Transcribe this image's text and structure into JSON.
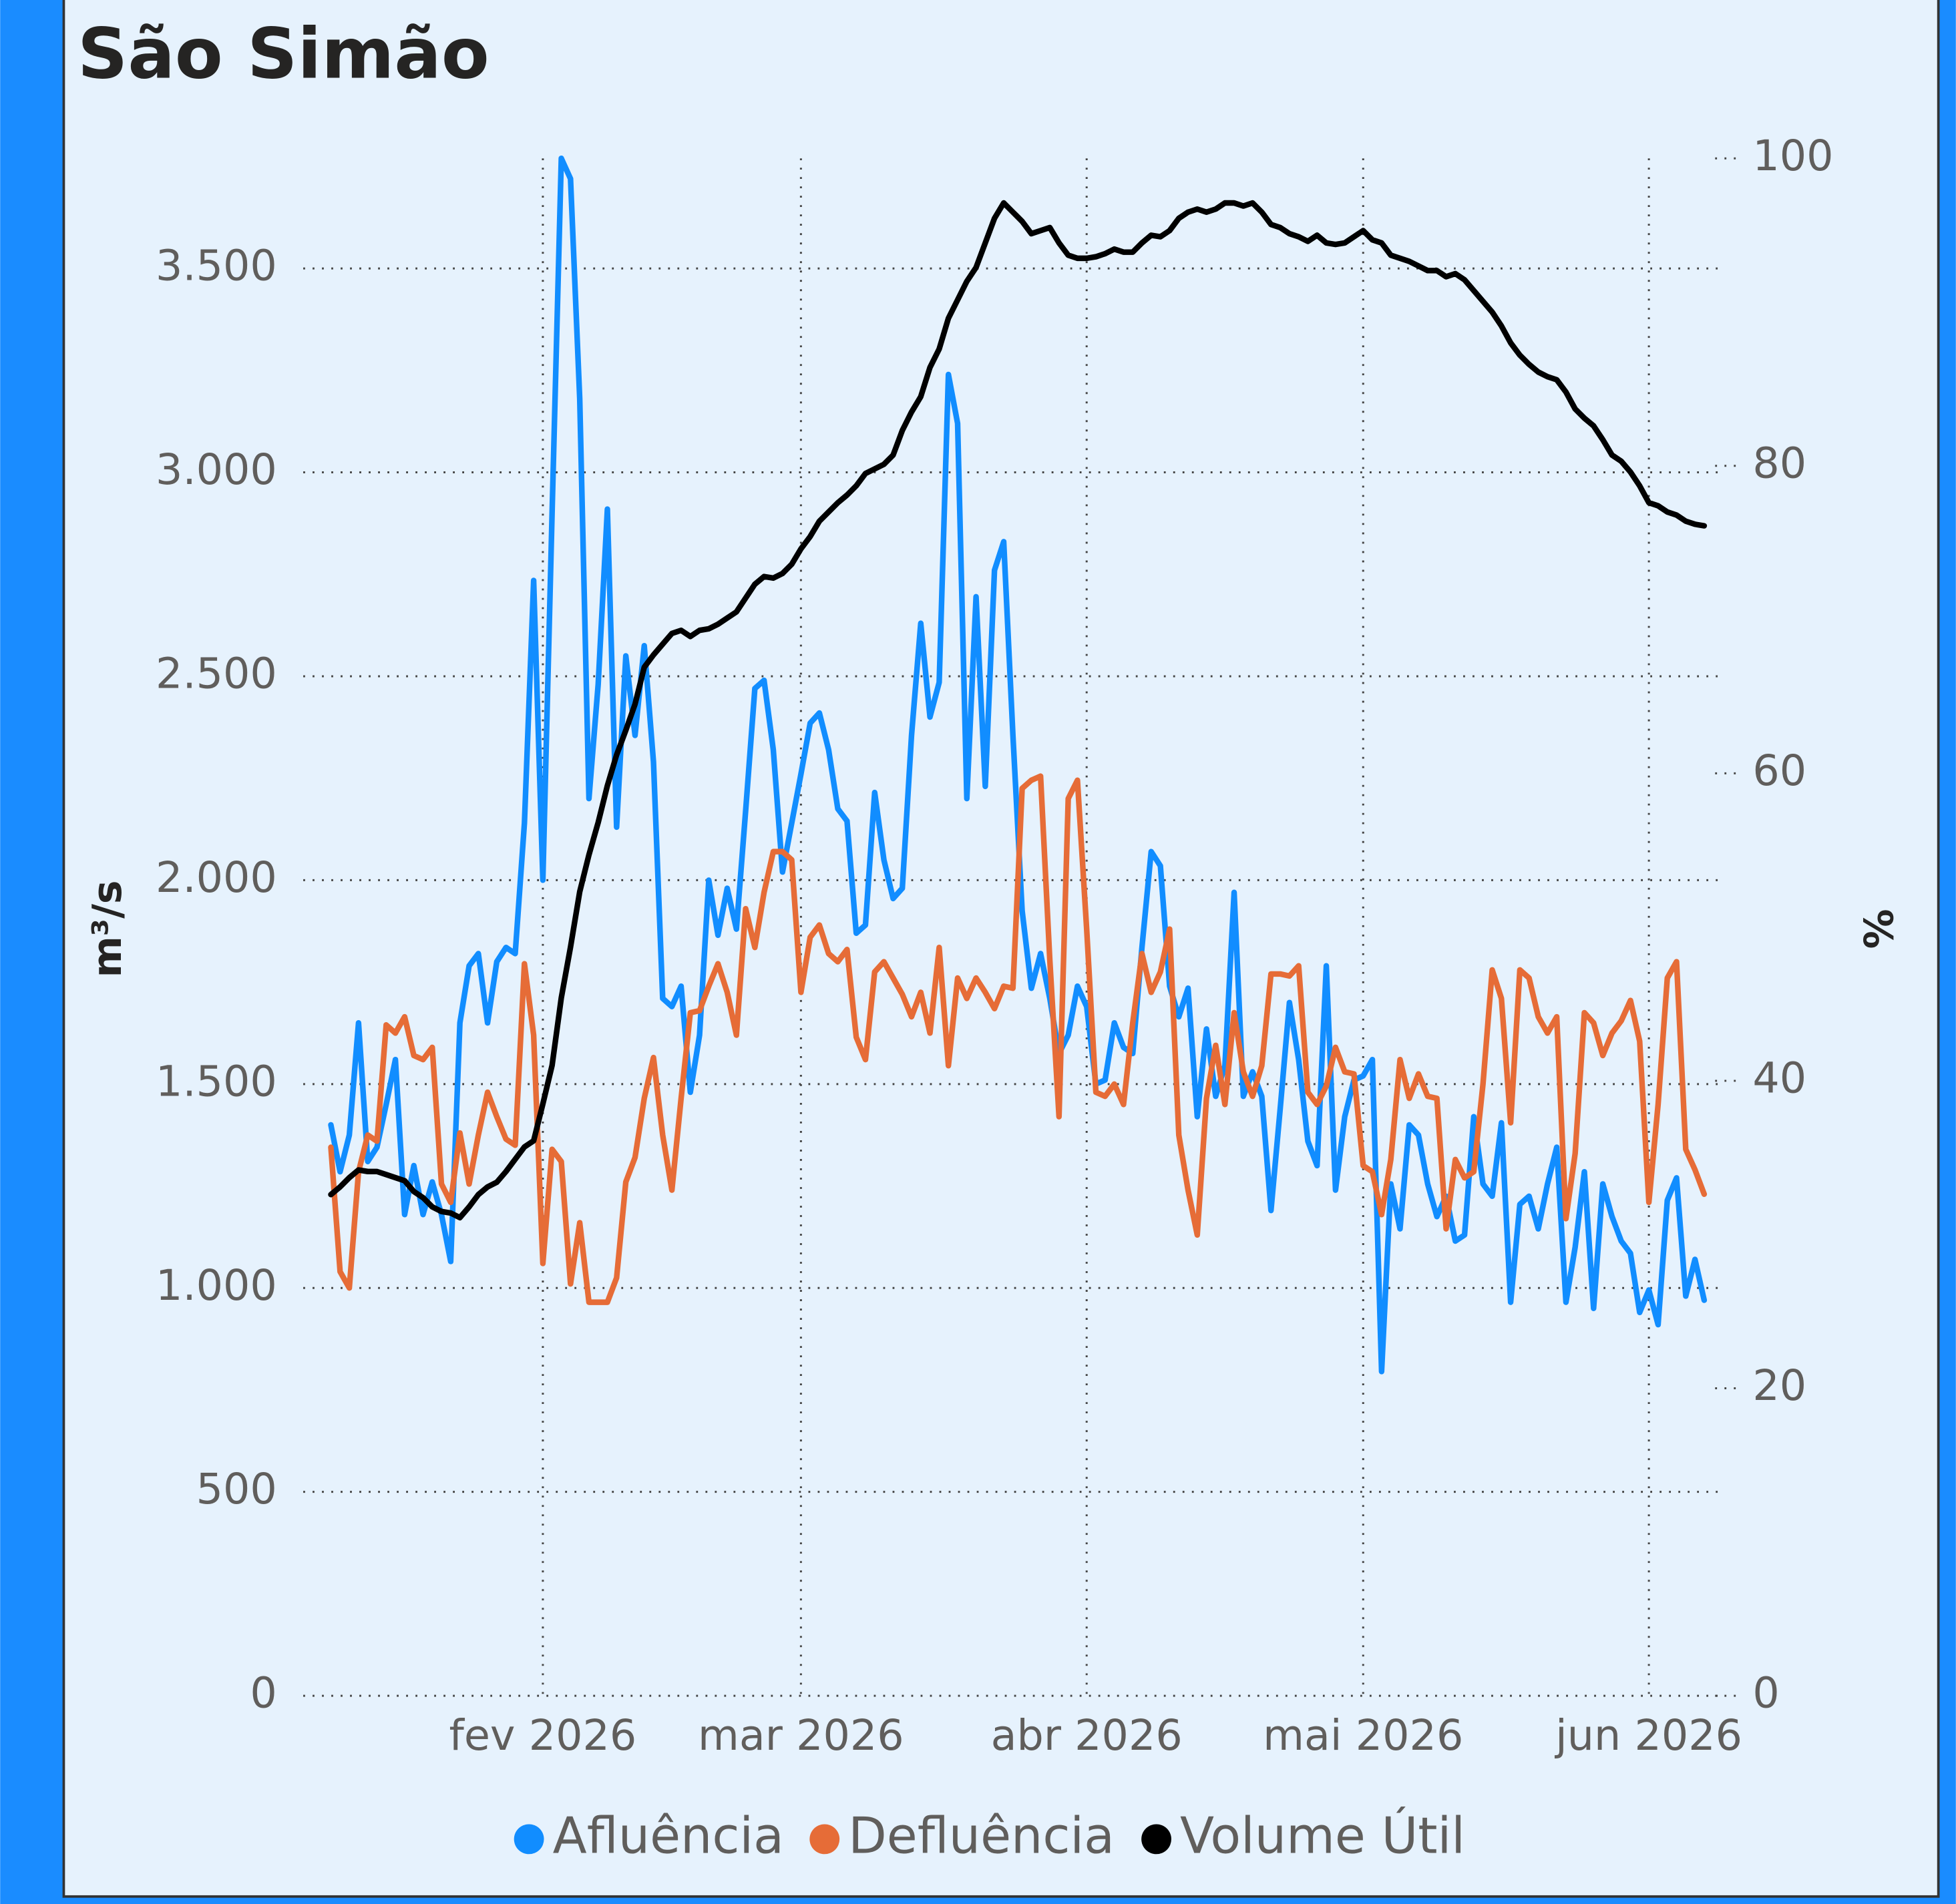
{
  "chart_data": {
    "type": "line",
    "title": "São Simão",
    "y_label": "m³/s",
    "y2_label": "%",
    "xlim": [
      6,
      160
    ],
    "xticks": [
      {
        "value": 32,
        "label": "fev 2026"
      },
      {
        "value": 60,
        "label": "mar 2026"
      },
      {
        "value": 91,
        "label": "abr 2026"
      },
      {
        "value": 121,
        "label": "mai 2026"
      },
      {
        "value": 152,
        "label": "jun 2026"
      }
    ],
    "ylim": [
      0,
      3770
    ],
    "yticks": [
      0,
      500,
      {
        "value": 1000,
        "label": "1.000"
      },
      {
        "value": 1500,
        "label": "1.500"
      },
      {
        "value": 2000,
        "label": "2.000"
      },
      {
        "value": 2500,
        "label": "2.500"
      },
      {
        "value": 3000,
        "label": "3.000"
      },
      {
        "value": 3500,
        "label": "3.500"
      }
    ],
    "y2lim": [
      0,
      100
    ],
    "y2ticks": [
      0,
      20,
      40,
      60,
      80,
      100
    ],
    "grid": true,
    "legend": "bottom",
    "x": [
      9,
      10,
      11,
      12,
      13,
      14,
      15,
      16,
      17,
      18,
      19,
      20,
      21,
      22,
      23,
      24,
      25,
      26,
      27,
      28,
      29,
      30,
      31,
      32,
      33,
      34,
      35,
      36,
      37,
      38,
      39,
      40,
      41,
      42,
      43,
      44,
      45,
      46,
      47,
      48,
      49,
      50,
      51,
      52,
      53,
      54,
      55,
      56,
      57,
      58,
      59,
      60,
      61,
      62,
      63,
      64,
      65,
      66,
      67,
      68,
      69,
      70,
      71,
      72,
      73,
      74,
      75,
      76,
      77,
      78,
      79,
      80,
      81,
      82,
      83,
      84,
      85,
      86,
      87,
      88,
      89,
      90,
      91,
      92,
      93,
      94,
      95,
      96,
      97,
      98,
      99,
      100,
      101,
      102,
      103,
      104,
      105,
      106,
      107,
      108,
      109,
      110,
      111,
      112,
      113,
      114,
      115,
      116,
      117,
      118,
      119,
      120,
      121,
      122,
      123,
      124,
      125,
      126,
      127,
      128,
      129,
      130,
      131,
      132,
      133,
      134,
      135,
      136,
      137,
      138,
      139,
      140,
      141,
      142,
      143,
      144,
      145,
      146,
      147,
      148,
      149,
      150,
      151,
      152,
      153,
      154,
      155,
      156,
      157,
      158
    ],
    "series": [
      {
        "name": "Afluência",
        "color": "#118dff",
        "values": [
          1400,
          1285,
          1375,
          1650,
          1310,
          1345,
          1450,
          1560,
          1180,
          1300,
          1180,
          1260,
          1180,
          1065,
          1650,
          1790,
          1820,
          1650,
          1800,
          1835,
          1820,
          2140,
          2735,
          2000,
          2900,
          3770,
          3720,
          3180,
          2200,
          2480,
          2910,
          2130,
          2550,
          2355,
          2575,
          2290,
          1710,
          1690,
          1740,
          1480,
          1620,
          2000,
          1865,
          1980,
          1880,
          2170,
          2470,
          2490,
          2320,
          2020,
          2140,
          2260,
          2385,
          2410,
          2320,
          2175,
          2145,
          1870,
          1890,
          2215,
          2050,
          1955,
          1980,
          2355,
          2630,
          2400,
          2485,
          3240,
          3120,
          2200,
          2695,
          2230,
          2760,
          2830,
          2355,
          1925,
          1735,
          1820,
          1710,
          1575,
          1620,
          1740,
          1690,
          1500,
          1510,
          1650,
          1590,
          1575,
          1835,
          2070,
          2035,
          1740,
          1665,
          1735,
          1420,
          1635,
          1470,
          1545,
          1970,
          1470,
          1530,
          1470,
          1190,
          1440,
          1700,
          1560,
          1360,
          1300,
          1790,
          1240,
          1420,
          1510,
          1520,
          1560,
          795,
          1255,
          1145,
          1400,
          1375,
          1255,
          1175,
          1225,
          1115,
          1130,
          1420,
          1255,
          1225,
          1405,
          965,
          1205,
          1225,
          1145,
          1255,
          1345,
          965,
          1100,
          1285,
          950,
          1255,
          1175,
          1115,
          1085,
          940,
          995,
          910,
          1215,
          1270,
          980,
          1070,
          970
        ]
      },
      {
        "name": "Defluência",
        "color": "#e66c37",
        "values": [
          1345,
          1040,
          1000,
          1285,
          1375,
          1360,
          1645,
          1625,
          1665,
          1570,
          1560,
          1590,
          1255,
          1210,
          1380,
          1255,
          1375,
          1480,
          1420,
          1365,
          1350,
          1795,
          1620,
          1060,
          1340,
          1310,
          1010,
          1160,
          965,
          965,
          965,
          1025,
          1260,
          1320,
          1465,
          1565,
          1375,
          1240,
          1465,
          1675,
          1680,
          1740,
          1795,
          1725,
          1620,
          1930,
          1835,
          1970,
          2070,
          2070,
          2050,
          1725,
          1860,
          1890,
          1820,
          1800,
          1830,
          1615,
          1560,
          1775,
          1800,
          1760,
          1720,
          1665,
          1725,
          1625,
          1835,
          1545,
          1760,
          1710,
          1760,
          1725,
          1685,
          1740,
          1735,
          2225,
          2245,
          2255,
          1805,
          1420,
          2200,
          2245,
          1880,
          1480,
          1470,
          1500,
          1450,
          1650,
          1820,
          1725,
          1775,
          1880,
          1375,
          1240,
          1130,
          1465,
          1595,
          1450,
          1675,
          1530,
          1470,
          1545,
          1770,
          1770,
          1765,
          1790,
          1480,
          1450,
          1495,
          1590,
          1530,
          1525,
          1300,
          1285,
          1180,
          1315,
          1560,
          1465,
          1525,
          1470,
          1465,
          1145,
          1315,
          1270,
          1285,
          1500,
          1780,
          1710,
          1405,
          1780,
          1760,
          1665,
          1625,
          1665,
          1170,
          1330,
          1675,
          1650,
          1570,
          1625,
          1655,
          1705,
          1605,
          1210,
          1450,
          1760,
          1800,
          1340,
          1290,
          1230
        ]
      },
      {
        "name": "Volume Útil",
        "color": "#000000",
        "axis": "y2",
        "values": [
          32.6,
          33.1,
          33.7,
          34.2,
          34.1,
          34.1,
          33.9,
          33.7,
          33.5,
          32.8,
          32.4,
          31.8,
          31.5,
          31.4,
          31.1,
          31.8,
          32.6,
          33.1,
          33.4,
          34.1,
          34.9,
          35.7,
          36.1,
          38.5,
          41.0,
          45.4,
          48.7,
          52.3,
          54.7,
          56.8,
          59.2,
          61.2,
          62.8,
          64.5,
          66.9,
          67.7,
          68.4,
          69.1,
          69.3,
          68.9,
          69.3,
          69.4,
          69.7,
          70.1,
          70.5,
          71.4,
          72.3,
          72.8,
          72.7,
          73.0,
          73.6,
          74.6,
          75.4,
          76.4,
          77.0,
          77.6,
          78.1,
          78.7,
          79.5,
          79.8,
          80.1,
          80.7,
          82.3,
          83.5,
          84.5,
          86.4,
          87.6,
          89.6,
          90.8,
          92.0,
          92.9,
          94.5,
          96.1,
          97.1,
          96.5,
          95.9,
          95.1,
          95.3,
          95.5,
          94.5,
          93.7,
          93.5,
          93.5,
          93.6,
          93.8,
          94.1,
          93.9,
          93.9,
          94.5,
          95.0,
          94.9,
          95.3,
          96.1,
          96.5,
          96.7,
          96.5,
          96.7,
          97.1,
          97.1,
          96.9,
          97.1,
          96.5,
          95.7,
          95.5,
          95.1,
          94.9,
          94.6,
          95.0,
          94.5,
          94.4,
          94.5,
          94.9,
          95.3,
          94.7,
          94.5,
          93.7,
          93.5,
          93.3,
          93.0,
          92.7,
          92.7,
          92.3,
          92.5,
          92.1,
          91.4,
          90.7,
          90.0,
          89.1,
          88.0,
          87.2,
          86.6,
          86.1,
          85.8,
          85.6,
          84.8,
          83.7,
          83.1,
          82.6,
          81.7,
          80.7,
          80.3,
          79.6,
          78.7,
          77.6,
          77.4,
          77.0,
          76.8,
          76.4,
          76.2,
          76.1
        ]
      }
    ]
  }
}
